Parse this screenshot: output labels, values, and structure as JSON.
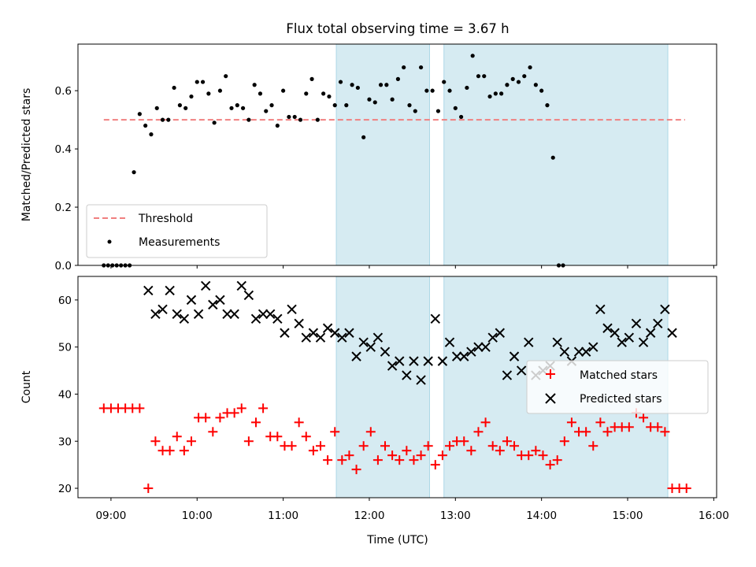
{
  "title": "Flux total observing time = 3.67 h",
  "chart_data": [
    {
      "type": "scatter",
      "ylabel": "Matched/Predicted stars",
      "ylim": [
        0,
        0.76
      ],
      "yticks": [
        0.0,
        0.2,
        0.4,
        0.6
      ],
      "xlim": [
        "08:37",
        "16:02"
      ],
      "xticks": [
        "09:00",
        "10:00",
        "11:00",
        "12:00",
        "13:00",
        "14:00",
        "15:00",
        "16:00"
      ],
      "legend_position": "lower-left",
      "threshold": {
        "name": "Threshold",
        "value": 0.5,
        "x_start": "08:55",
        "x_end": "15:40",
        "color": "#f08080"
      },
      "shaded_intervals": [
        [
          "11:37",
          "12:42"
        ],
        [
          "12:52",
          "15:28"
        ]
      ],
      "series": [
        {
          "name": "Measurements",
          "color": "#000000",
          "points": [
            [
              "08:55",
              0.0
            ],
            [
              "08:58",
              0.0
            ],
            [
              "09:01",
              0.0
            ],
            [
              "09:04",
              0.0
            ],
            [
              "09:07",
              0.0
            ],
            [
              "09:10",
              0.0
            ],
            [
              "09:13",
              0.0
            ],
            [
              "09:16",
              0.32
            ],
            [
              "09:20",
              0.52
            ],
            [
              "09:24",
              0.48
            ],
            [
              "09:28",
              0.45
            ],
            [
              "09:32",
              0.54
            ],
            [
              "09:36",
              0.5
            ],
            [
              "09:40",
              0.5
            ],
            [
              "09:44",
              0.61
            ],
            [
              "09:48",
              0.55
            ],
            [
              "09:52",
              0.54
            ],
            [
              "09:56",
              0.58
            ],
            [
              "10:00",
              0.63
            ],
            [
              "10:04",
              0.63
            ],
            [
              "10:08",
              0.59
            ],
            [
              "10:12",
              0.49
            ],
            [
              "10:16",
              0.6
            ],
            [
              "10:20",
              0.65
            ],
            [
              "10:24",
              0.54
            ],
            [
              "10:28",
              0.55
            ],
            [
              "10:32",
              0.54
            ],
            [
              "10:36",
              0.5
            ],
            [
              "10:40",
              0.62
            ],
            [
              "10:44",
              0.59
            ],
            [
              "10:48",
              0.53
            ],
            [
              "10:52",
              0.55
            ],
            [
              "10:56",
              0.48
            ],
            [
              "11:00",
              0.6
            ],
            [
              "11:04",
              0.51
            ],
            [
              "11:08",
              0.51
            ],
            [
              "11:12",
              0.5
            ],
            [
              "11:16",
              0.59
            ],
            [
              "11:20",
              0.64
            ],
            [
              "11:24",
              0.5
            ],
            [
              "11:28",
              0.59
            ],
            [
              "11:32",
              0.58
            ],
            [
              "11:36",
              0.55
            ],
            [
              "11:40",
              0.63
            ],
            [
              "11:44",
              0.55
            ],
            [
              "11:48",
              0.62
            ],
            [
              "11:52",
              0.61
            ],
            [
              "11:56",
              0.44
            ],
            [
              "12:00",
              0.57
            ],
            [
              "12:04",
              0.56
            ],
            [
              "12:08",
              0.62
            ],
            [
              "12:12",
              0.62
            ],
            [
              "12:16",
              0.57
            ],
            [
              "12:20",
              0.64
            ],
            [
              "12:24",
              0.68
            ],
            [
              "12:28",
              0.55
            ],
            [
              "12:32",
              0.53
            ],
            [
              "12:36",
              0.68
            ],
            [
              "12:40",
              0.6
            ],
            [
              "12:44",
              0.6
            ],
            [
              "12:48",
              0.53
            ],
            [
              "12:52",
              0.63
            ],
            [
              "12:56",
              0.6
            ],
            [
              "13:00",
              0.54
            ],
            [
              "13:04",
              0.51
            ],
            [
              "13:08",
              0.61
            ],
            [
              "13:12",
              0.72
            ],
            [
              "13:16",
              0.65
            ],
            [
              "13:20",
              0.65
            ],
            [
              "13:24",
              0.58
            ],
            [
              "13:28",
              0.59
            ],
            [
              "13:32",
              0.59
            ],
            [
              "13:36",
              0.62
            ],
            [
              "13:40",
              0.64
            ],
            [
              "13:44",
              0.63
            ],
            [
              "13:48",
              0.65
            ],
            [
              "13:52",
              0.68
            ],
            [
              "13:56",
              0.62
            ],
            [
              "14:00",
              0.6
            ],
            [
              "14:04",
              0.55
            ],
            [
              "14:08",
              0.37
            ],
            [
              "14:12",
              0.0
            ],
            [
              "14:15",
              0.0
            ]
          ]
        }
      ]
    },
    {
      "type": "scatter",
      "xlabel": "Time (UTC)",
      "ylabel": "Count",
      "ylim": [
        18,
        65
      ],
      "yticks": [
        20,
        30,
        40,
        50,
        60
      ],
      "xlim": [
        "08:37",
        "16:02"
      ],
      "xticks": [
        "09:00",
        "10:00",
        "11:00",
        "12:00",
        "13:00",
        "14:00",
        "15:00",
        "16:00"
      ],
      "legend_position": "center-right",
      "shaded_intervals": [
        [
          "11:37",
          "12:42"
        ],
        [
          "12:52",
          "15:28"
        ]
      ],
      "series": [
        {
          "name": "Matched stars",
          "marker": "+",
          "color": "#ff0000",
          "points": [
            [
              "08:55",
              37
            ],
            [
              "09:00",
              37
            ],
            [
              "09:05",
              37
            ],
            [
              "09:10",
              37
            ],
            [
              "09:15",
              37
            ],
            [
              "09:20",
              37
            ],
            [
              "09:26",
              20
            ],
            [
              "09:31",
              30
            ],
            [
              "09:36",
              28
            ],
            [
              "09:41",
              28
            ],
            [
              "09:46",
              31
            ],
            [
              "09:51",
              28
            ],
            [
              "09:56",
              30
            ],
            [
              "10:01",
              35
            ],
            [
              "10:06",
              35
            ],
            [
              "10:11",
              32
            ],
            [
              "10:16",
              35
            ],
            [
              "10:21",
              36
            ],
            [
              "10:26",
              36
            ],
            [
              "10:31",
              37
            ],
            [
              "10:36",
              30
            ],
            [
              "10:41",
              34
            ],
            [
              "10:46",
              37
            ],
            [
              "10:51",
              31
            ],
            [
              "10:56",
              31
            ],
            [
              "11:01",
              29
            ],
            [
              "11:06",
              29
            ],
            [
              "11:11",
              34
            ],
            [
              "11:16",
              31
            ],
            [
              "11:21",
              28
            ],
            [
              "11:26",
              29
            ],
            [
              "11:31",
              26
            ],
            [
              "11:36",
              32
            ],
            [
              "11:41",
              26
            ],
            [
              "11:46",
              27
            ],
            [
              "11:51",
              24
            ],
            [
              "11:56",
              29
            ],
            [
              "12:01",
              32
            ],
            [
              "12:06",
              26
            ],
            [
              "12:11",
              29
            ],
            [
              "12:16",
              27
            ],
            [
              "12:21",
              26
            ],
            [
              "12:26",
              28
            ],
            [
              "12:31",
              26
            ],
            [
              "12:36",
              27
            ],
            [
              "12:41",
              29
            ],
            [
              "12:46",
              25
            ],
            [
              "12:51",
              27
            ],
            [
              "12:56",
              29
            ],
            [
              "13:01",
              30
            ],
            [
              "13:06",
              30
            ],
            [
              "13:11",
              28
            ],
            [
              "13:16",
              32
            ],
            [
              "13:21",
              34
            ],
            [
              "13:26",
              29
            ],
            [
              "13:31",
              28
            ],
            [
              "13:36",
              30
            ],
            [
              "13:41",
              29
            ],
            [
              "13:46",
              27
            ],
            [
              "13:51",
              27
            ],
            [
              "13:56",
              28
            ],
            [
              "14:01",
              27
            ],
            [
              "14:06",
              25
            ],
            [
              "14:11",
              26
            ],
            [
              "14:16",
              30
            ],
            [
              "14:21",
              34
            ],
            [
              "14:26",
              32
            ],
            [
              "14:31",
              32
            ],
            [
              "14:36",
              29
            ],
            [
              "14:41",
              34
            ],
            [
              "14:46",
              32
            ],
            [
              "14:51",
              33
            ],
            [
              "14:56",
              33
            ],
            [
              "15:01",
              33
            ],
            [
              "15:06",
              36
            ],
            [
              "15:11",
              35
            ],
            [
              "15:16",
              33
            ],
            [
              "15:21",
              33
            ],
            [
              "15:26",
              32
            ],
            [
              "15:31",
              20
            ],
            [
              "15:36",
              20
            ],
            [
              "15:41",
              20
            ]
          ]
        },
        {
          "name": "Predicted stars",
          "marker": "x",
          "color": "#000000",
          "points": [
            [
              "09:26",
              62
            ],
            [
              "09:31",
              57
            ],
            [
              "09:36",
              58
            ],
            [
              "09:41",
              62
            ],
            [
              "09:46",
              57
            ],
            [
              "09:51",
              56
            ],
            [
              "09:56",
              60
            ],
            [
              "10:01",
              57
            ],
            [
              "10:06",
              63
            ],
            [
              "10:11",
              59
            ],
            [
              "10:16",
              60
            ],
            [
              "10:21",
              57
            ],
            [
              "10:26",
              57
            ],
            [
              "10:31",
              63
            ],
            [
              "10:36",
              61
            ],
            [
              "10:41",
              56
            ],
            [
              "10:46",
              57
            ],
            [
              "10:51",
              57
            ],
            [
              "10:56",
              56
            ],
            [
              "11:01",
              53
            ],
            [
              "11:06",
              58
            ],
            [
              "11:11",
              55
            ],
            [
              "11:16",
              52
            ],
            [
              "11:21",
              53
            ],
            [
              "11:26",
              52
            ],
            [
              "11:31",
              54
            ],
            [
              "11:36",
              53
            ],
            [
              "11:41",
              52
            ],
            [
              "11:46",
              53
            ],
            [
              "11:51",
              48
            ],
            [
              "11:56",
              51
            ],
            [
              "12:01",
              50
            ],
            [
              "12:06",
              52
            ],
            [
              "12:11",
              49
            ],
            [
              "12:16",
              46
            ],
            [
              "12:21",
              47
            ],
            [
              "12:26",
              44
            ],
            [
              "12:31",
              47
            ],
            [
              "12:36",
              43
            ],
            [
              "12:41",
              47
            ],
            [
              "12:46",
              56
            ],
            [
              "12:51",
              47
            ],
            [
              "12:56",
              51
            ],
            [
              "13:01",
              48
            ],
            [
              "13:06",
              48
            ],
            [
              "13:11",
              49
            ],
            [
              "13:16",
              50
            ],
            [
              "13:21",
              50
            ],
            [
              "13:26",
              52
            ],
            [
              "13:31",
              53
            ],
            [
              "13:36",
              44
            ],
            [
              "13:41",
              48
            ],
            [
              "13:46",
              45
            ],
            [
              "13:51",
              51
            ],
            [
              "13:56",
              44
            ],
            [
              "14:01",
              45
            ],
            [
              "14:06",
              46
            ],
            [
              "14:11",
              51
            ],
            [
              "14:16",
              49
            ],
            [
              "14:21",
              47
            ],
            [
              "14:26",
              49
            ],
            [
              "14:31",
              49
            ],
            [
              "14:36",
              50
            ],
            [
              "14:41",
              58
            ],
            [
              "14:46",
              54
            ],
            [
              "14:51",
              53
            ],
            [
              "14:56",
              51
            ],
            [
              "15:01",
              52
            ],
            [
              "15:06",
              55
            ],
            [
              "15:11",
              51
            ],
            [
              "15:16",
              53
            ],
            [
              "15:21",
              55
            ],
            [
              "15:26",
              58
            ],
            [
              "15:31",
              53
            ]
          ]
        }
      ]
    }
  ]
}
